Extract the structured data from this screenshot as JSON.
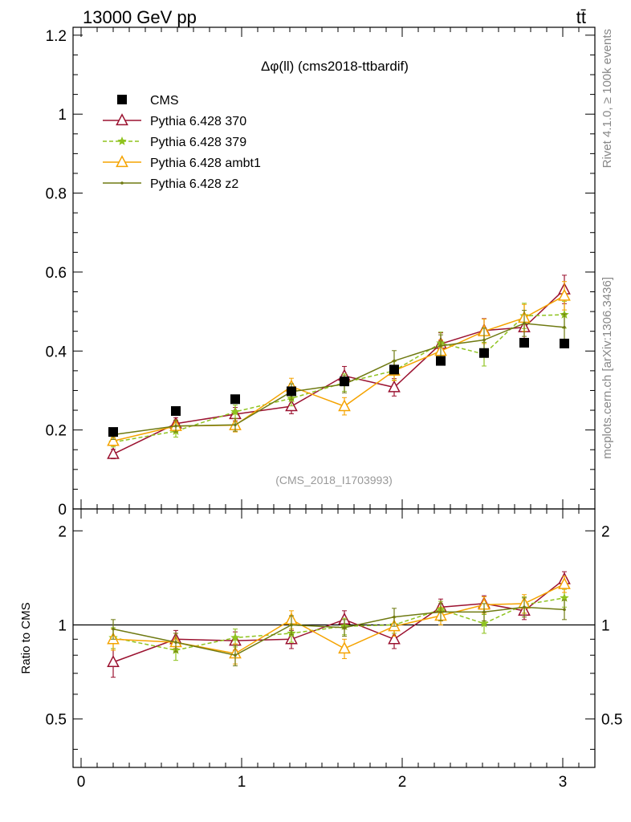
{
  "header": {
    "energy_label": "13000 GeV pp",
    "process_label": "tt̄"
  },
  "side": {
    "rivet_label": "Rivet 4.1.0, ≥ 100k events",
    "url_label": "mcplots.cern.ch [arXiv:1306.3436]"
  },
  "colors": {
    "data": "#000000",
    "p370": "#9b1230",
    "p379": "#8fc31f",
    "ambt1": "#f5a300",
    "z2": "#6f7a12"
  },
  "chart_data": [
    {
      "type": "line",
      "panel": "main",
      "title": "Δφ(ll) (cms2018-ttbardif)",
      "watermark": "(CMS_2018_I1703993)",
      "xlabel": "",
      "ylabel": "",
      "xlim": [
        -0.05,
        3.2
      ],
      "ylim": [
        0,
        1.22
      ],
      "y_ticks": [
        0,
        0.2,
        0.4,
        0.6,
        0.8,
        1,
        1.2
      ],
      "y_tick_labels": [
        "0",
        "0.2",
        "0.4",
        "0.6",
        "0.8",
        "1",
        "1.2"
      ],
      "legend_position": "top-left",
      "x": [
        0.2,
        0.59,
        0.96,
        1.31,
        1.64,
        1.95,
        2.24,
        2.51,
        2.76,
        3.01
      ],
      "series": [
        {
          "name": "CMS",
          "marker": "square",
          "line": "none",
          "color_key": "data",
          "values": [
            0.195,
            0.248,
            0.278,
            0.298,
            0.323,
            0.353,
            0.375,
            0.395,
            0.421,
            0.419
          ],
          "errors": [
            0.006,
            0.006,
            0.006,
            0.007,
            0.007,
            0.008,
            0.008,
            0.009,
            0.009,
            0.009
          ]
        },
        {
          "name": "Pythia 6.428 370",
          "marker": "triangle-open",
          "line": "solid",
          "color_key": "p370",
          "values": [
            0.139,
            0.216,
            0.24,
            0.26,
            0.337,
            0.308,
            0.418,
            0.452,
            0.46,
            0.556
          ],
          "errors": [
            0.012,
            0.015,
            0.017,
            0.019,
            0.024,
            0.022,
            0.028,
            0.03,
            0.031,
            0.036
          ]
        },
        {
          "name": "Pythia 6.428 379",
          "marker": "star",
          "line": "dashed",
          "color_key": "p379",
          "values": [
            0.169,
            0.197,
            0.246,
            0.28,
            0.32,
            0.35,
            0.42,
            0.392,
            0.489,
            0.492
          ],
          "errors": [
            0.012,
            0.015,
            0.017,
            0.019,
            0.022,
            0.024,
            0.028,
            0.03,
            0.032,
            0.034
          ]
        },
        {
          "name": "Pythia 6.428 ambt1",
          "marker": "triangle-open",
          "line": "solid",
          "color_key": "ambt1",
          "values": [
            0.172,
            0.21,
            0.212,
            0.31,
            0.26,
            0.35,
            0.4,
            0.45,
            0.484,
            0.54
          ],
          "errors": [
            0.012,
            0.015,
            0.017,
            0.021,
            0.022,
            0.025,
            0.028,
            0.031,
            0.034,
            0.036
          ]
        },
        {
          "name": "Pythia 6.428 z2",
          "marker": "dot",
          "line": "solid",
          "color_key": "z2",
          "values": [
            0.188,
            0.21,
            0.213,
            0.297,
            0.316,
            0.375,
            0.413,
            0.428,
            0.47,
            0.46
          ],
          "errors": [
            0.012,
            0.015,
            0.016,
            0.02,
            0.022,
            0.026,
            0.028,
            0.03,
            0.033,
            0.034
          ]
        }
      ]
    },
    {
      "type": "line",
      "panel": "ratio",
      "title": "",
      "xlabel": "",
      "ylabel": "Ratio to CMS",
      "xlim": [
        -0.05,
        3.2
      ],
      "ylim": [
        0.35,
        2.35
      ],
      "x_ticks": [
        0,
        1,
        2,
        3
      ],
      "x_tick_labels": [
        "0",
        "1",
        "2",
        "3"
      ],
      "y_ticks": [
        0.5,
        1,
        2
      ],
      "y_tick_labels": [
        "0.5",
        "1",
        "2"
      ],
      "reference_line": 1,
      "x": [
        0.2,
        0.59,
        0.96,
        1.31,
        1.64,
        1.95,
        2.24,
        2.51,
        2.76,
        3.01
      ],
      "series": [
        {
          "name": "Pythia 6.428 370",
          "marker": "triangle-open",
          "line": "solid",
          "color_key": "p370",
          "values": [
            0.76,
            0.9,
            0.89,
            0.9,
            1.04,
            0.9,
            1.14,
            1.17,
            1.11,
            1.4
          ],
          "errors": [
            0.08,
            0.06,
            0.06,
            0.06,
            0.07,
            0.06,
            0.07,
            0.07,
            0.07,
            0.08
          ]
        },
        {
          "name": "Pythia 6.428 379",
          "marker": "star",
          "line": "dashed",
          "color_key": "p379",
          "values": [
            0.91,
            0.83,
            0.91,
            0.94,
            0.99,
            1.0,
            1.12,
            1.01,
            1.16,
            1.22
          ],
          "errors": [
            0.07,
            0.06,
            0.06,
            0.06,
            0.06,
            0.06,
            0.07,
            0.07,
            0.07,
            0.08
          ]
        },
        {
          "name": "Pythia 6.428 ambt1",
          "marker": "triangle-open",
          "line": "solid",
          "color_key": "ambt1",
          "values": [
            0.9,
            0.88,
            0.81,
            1.04,
            0.84,
            0.99,
            1.07,
            1.16,
            1.17,
            1.35
          ],
          "errors": [
            0.07,
            0.06,
            0.06,
            0.07,
            0.06,
            0.07,
            0.07,
            0.07,
            0.08,
            0.08
          ]
        },
        {
          "name": "Pythia 6.428 z2",
          "marker": "dot",
          "line": "solid",
          "color_key": "z2",
          "values": [
            0.97,
            0.88,
            0.8,
            1.0,
            0.98,
            1.06,
            1.1,
            1.1,
            1.14,
            1.12
          ],
          "errors": [
            0.07,
            0.06,
            0.06,
            0.07,
            0.06,
            0.07,
            0.07,
            0.07,
            0.08,
            0.08
          ]
        }
      ]
    }
  ]
}
